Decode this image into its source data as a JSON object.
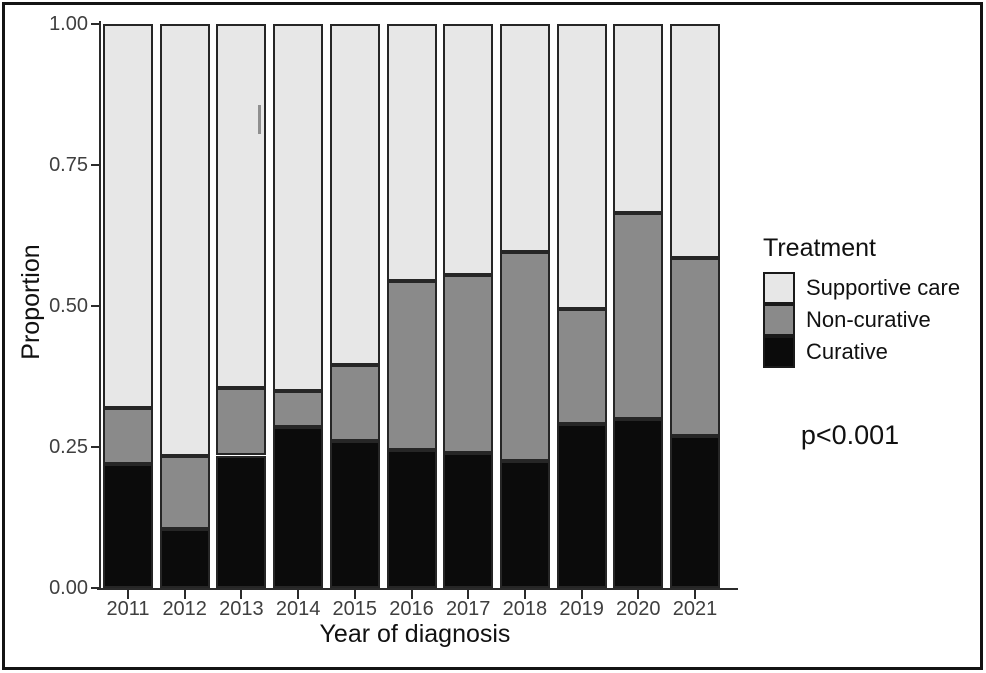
{
  "chart_data": {
    "type": "bar",
    "stacked": true,
    "title": "",
    "xlabel": "Year of diagnosis",
    "ylabel": "Proportion",
    "annotation": "p<0.001",
    "legend_title": "Treatment",
    "legend_position": "right",
    "grid": false,
    "ylim": [
      0,
      1
    ],
    "yticks": [
      {
        "label": "1.00",
        "value": 1.0
      },
      {
        "label": "0.75",
        "value": 0.75
      },
      {
        "label": "0.50",
        "value": 0.5
      },
      {
        "label": "0.25",
        "value": 0.25
      },
      {
        "label": "0.00",
        "value": 0.0
      }
    ],
    "categories": [
      "2011",
      "2012",
      "2013",
      "2014",
      "2015",
      "2016",
      "2017",
      "2018",
      "2019",
      "2020",
      "2021"
    ],
    "series": [
      {
        "name": "Curative",
        "color": "#0b0b0b",
        "values": [
          0.22,
          0.105,
          0.235,
          0.285,
          0.26,
          0.245,
          0.24,
          0.225,
          0.29,
          0.3,
          0.27
        ]
      },
      {
        "name": "Non-curative",
        "color": "#8a8a8a",
        "values": [
          0.1,
          0.13,
          0.12,
          0.065,
          0.135,
          0.3,
          0.315,
          0.37,
          0.205,
          0.365,
          0.315
        ]
      },
      {
        "name": "Supportive care",
        "color": "#e7e7e7",
        "values": [
          0.68,
          0.765,
          0.645,
          0.65,
          0.605,
          0.455,
          0.445,
          0.405,
          0.505,
          0.335,
          0.415
        ]
      }
    ],
    "legend_items": [
      {
        "label": "Supportive care",
        "color": "#e7e7e7"
      },
      {
        "label": "Non-curative",
        "color": "#8a8a8a"
      },
      {
        "label": "Curative",
        "color": "#0b0b0b"
      }
    ]
  }
}
